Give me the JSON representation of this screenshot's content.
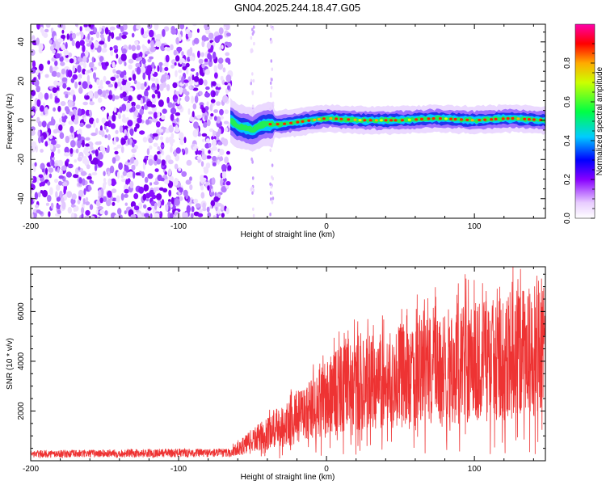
{
  "title": "GN04.2025.244.18.47.G05",
  "chart_data": [
    {
      "type": "heatmap",
      "xlabel": "Height of straight line (km)",
      "ylabel": "Frequency (Hz)",
      "xlim": [
        -200,
        148
      ],
      "ylim": [
        -50,
        49
      ],
      "xticks": [
        -200,
        -100,
        0,
        100
      ],
      "yticks": [
        -40,
        -20,
        0,
        20,
        40
      ],
      "colorbar": {
        "label": "Normalized spectral amplitude",
        "range": [
          0.0,
          1.0
        ],
        "ticks": [
          0.0,
          0.2,
          0.4,
          0.6,
          0.8
        ]
      },
      "noise_region_x": [
        -200,
        -65
      ],
      "signal_ridge": {
        "x": [
          -65,
          -60,
          -55,
          -50,
          -45,
          -40,
          -35,
          -30,
          -20,
          -10,
          0,
          25,
          50,
          75,
          100,
          125,
          148
        ],
        "y": [
          0,
          -3,
          -4,
          -5,
          -3,
          -2,
          -2,
          -2,
          -1,
          0,
          1,
          0,
          0,
          1,
          0,
          1,
          0
        ]
      }
    },
    {
      "type": "line",
      "xlabel": "Height of straight line (km)",
      "ylabel": "SNR (10 * v/v)",
      "xlim": [
        -200,
        148
      ],
      "ylim": [
        0,
        7800
      ],
      "xticks": [
        -200,
        -100,
        0,
        100
      ],
      "yticks": [
        2000,
        4000,
        6000
      ],
      "series": [
        {
          "color": "#ee3333",
          "envelope": {
            "x": [
              -200,
              -100,
              -65,
              -55,
              -50,
              -40,
              -30,
              -20,
              -10,
              0,
              10,
              25,
              50,
              75,
              100,
              125,
              148
            ],
            "y": [
              300,
              350,
              350,
              700,
              900,
              1200,
              1500,
              1900,
              2300,
              2800,
              3200,
              3400,
              3800,
              4000,
              4400,
              4700,
              4900
            ]
          }
        }
      ]
    }
  ],
  "colors": {
    "signal": "#ee3333"
  }
}
